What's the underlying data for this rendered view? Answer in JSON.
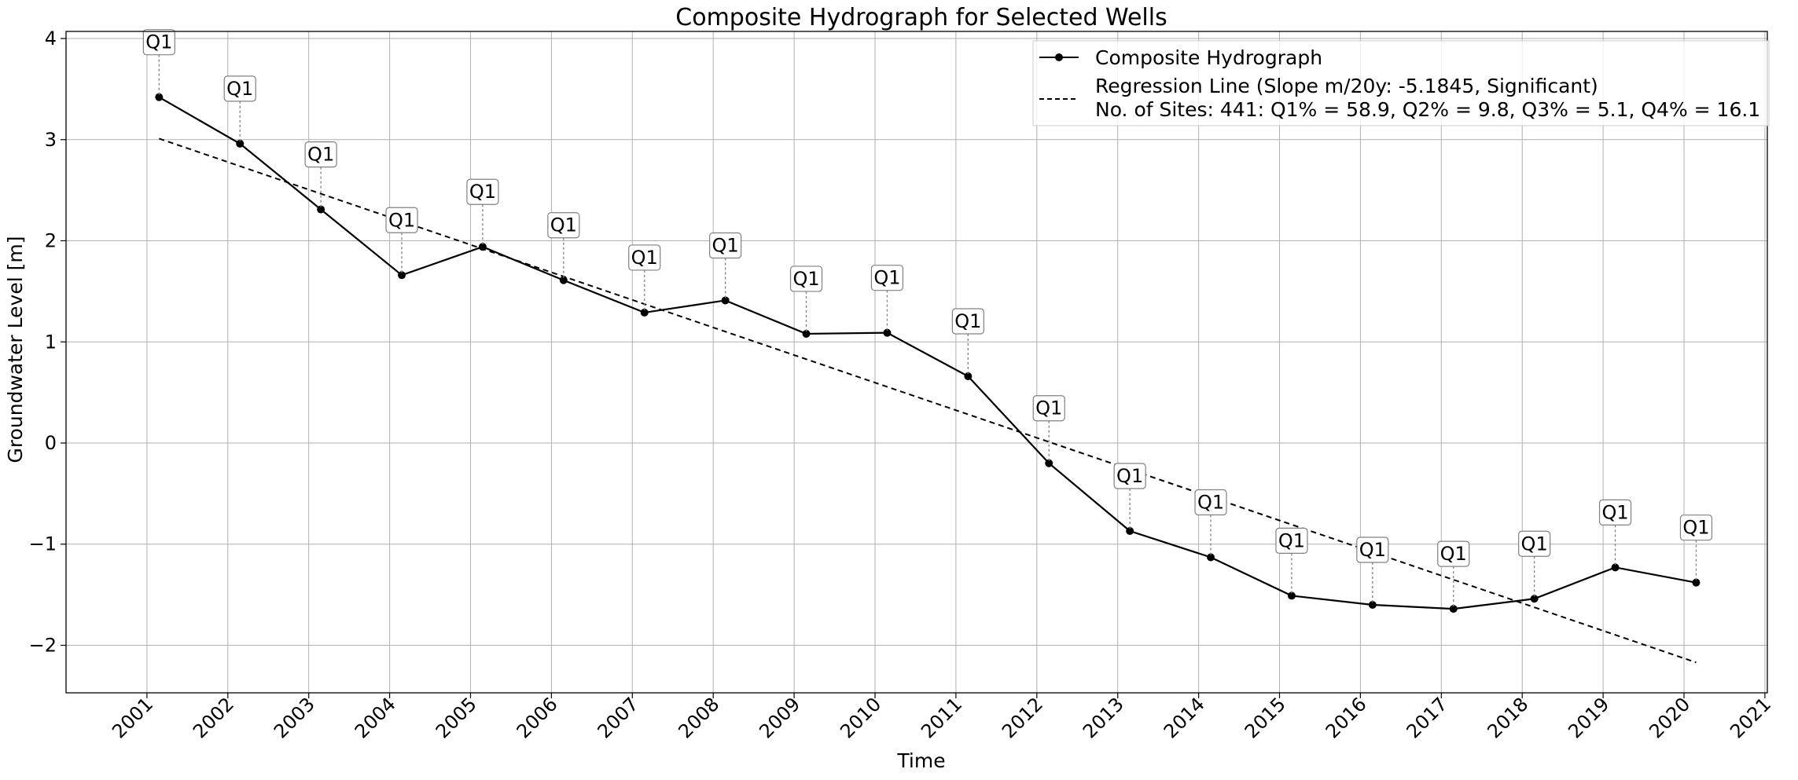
{
  "chart_data": {
    "type": "line",
    "title": "Composite Hydrograph for Selected Wells",
    "xlabel": "Time",
    "ylabel": "Groundwater Level [m]",
    "x_ticks": [
      "2001",
      "2002",
      "2003",
      "2004",
      "2005",
      "2006",
      "2007",
      "2008",
      "2009",
      "2010",
      "2011",
      "2012",
      "2013",
      "2014",
      "2015",
      "2016",
      "2017",
      "2018",
      "2019",
      "2020",
      "2021"
    ],
    "y_ticks": [
      4,
      3,
      2,
      1,
      0,
      -1,
      -2
    ],
    "y_tick_labels": [
      "4",
      "3",
      "2",
      "1",
      "0",
      "−1",
      "−2"
    ],
    "xlim": [
      2000.0,
      2021.03
    ],
    "ylim": [
      -2.47,
      4.07
    ],
    "grid": true,
    "legend_position": "top-right",
    "series": [
      {
        "name": "Composite Hydrograph",
        "style": "solid-with-markers",
        "color": "#000000",
        "x": [
          2001.15,
          2002.15,
          2003.15,
          2004.15,
          2005.15,
          2006.15,
          2007.15,
          2008.15,
          2009.15,
          2010.15,
          2011.15,
          2012.15,
          2013.15,
          2014.15,
          2015.15,
          2016.15,
          2017.15,
          2018.15,
          2019.15,
          2020.15
        ],
        "y": [
          3.42,
          2.96,
          2.31,
          1.66,
          1.94,
          1.61,
          1.29,
          1.41,
          1.08,
          1.09,
          0.66,
          -0.2,
          -0.87,
          -1.13,
          -1.51,
          -1.6,
          -1.64,
          -1.54,
          -1.23,
          -1.38
        ],
        "annotations": [
          "Q1",
          "Q1",
          "Q1",
          "Q1",
          "Q1",
          "Q1",
          "Q1",
          "Q1",
          "Q1",
          "Q1",
          "Q1",
          "Q1",
          "Q1",
          "Q1",
          "Q1",
          "Q1",
          "Q1",
          "Q1",
          "Q1",
          "Q1"
        ]
      },
      {
        "name": "Regression Line (Slope m/20y: -5.1845, Significant)",
        "name_line2": "No. of Sites: 441: Q1% = 58.9, Q2% = 9.8, Q3% = 5.1, Q4% = 16.1",
        "style": "dashed",
        "color": "#000000",
        "x": [
          2001.15,
          2020.15
        ],
        "y": [
          3.01,
          -2.17
        ]
      }
    ]
  }
}
